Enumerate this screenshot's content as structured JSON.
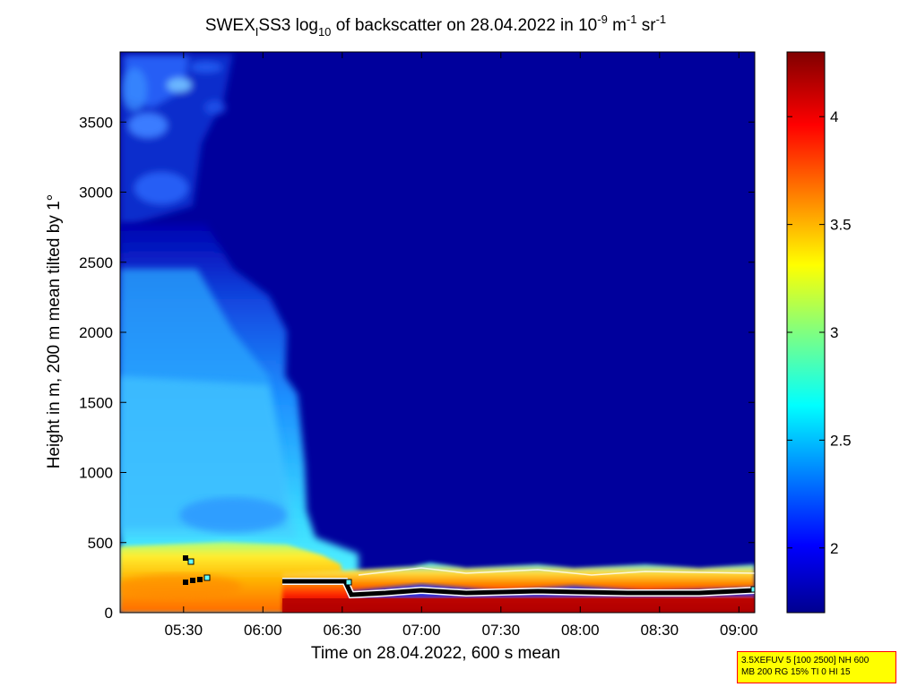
{
  "chart_data": {
    "type": "heatmap",
    "title_parts": {
      "p1": "SWEX",
      "sub1": "I",
      "p2": "SS3 log",
      "sub2": "10",
      "p3": " of backscatter on 28.04.2022 in 10",
      "sup1": "-9",
      "p4": " m",
      "sup2": "-1",
      "p5": " sr",
      "sup3": "-1"
    },
    "xlabel": "Time on 28.04.2022, 600 s mean",
    "ylabel": "Height in m, 200 m mean tilted by 1°",
    "x_range_hours": [
      5.1,
      9.1
    ],
    "x_ticks": [
      {
        "value": 5.5,
        "label": "05:30"
      },
      {
        "value": 6.0,
        "label": "06:00"
      },
      {
        "value": 6.5,
        "label": "06:30"
      },
      {
        "value": 7.0,
        "label": "07:00"
      },
      {
        "value": 7.5,
        "label": "07:30"
      },
      {
        "value": 8.0,
        "label": "08:00"
      },
      {
        "value": 8.5,
        "label": "08:30"
      },
      {
        "value": 9.0,
        "label": "09:00"
      }
    ],
    "y_range": [
      0,
      4000
    ],
    "y_ticks": [
      0,
      500,
      1000,
      1500,
      2000,
      2500,
      3000,
      3500
    ],
    "colorbar": {
      "range": [
        1.7,
        4.3
      ],
      "ticks": [
        {
          "value": 2.0,
          "label": "2"
        },
        {
          "value": 2.5,
          "label": "2.5"
        },
        {
          "value": 3.0,
          "label": "3"
        },
        {
          "value": 3.5,
          "label": "3.5"
        },
        {
          "value": 4.0,
          "label": "4"
        }
      ],
      "colormap": "jet"
    },
    "mixing_layer_height_m": {
      "times": [
        6.1,
        6.5,
        6.55,
        7.0,
        7.5,
        8.0,
        8.5,
        9.0
      ],
      "values": [
        200,
        200,
        140,
        150,
        145,
        145,
        140,
        145
      ]
    }
  },
  "info_box": {
    "line1": "3.5XEFUV 5 [100 2500] NH 600",
    "line2": "MB 200 RG 15% TI 0 HI 15",
    "bg_color": "#ffff00",
    "border_color": "#ff0000"
  }
}
